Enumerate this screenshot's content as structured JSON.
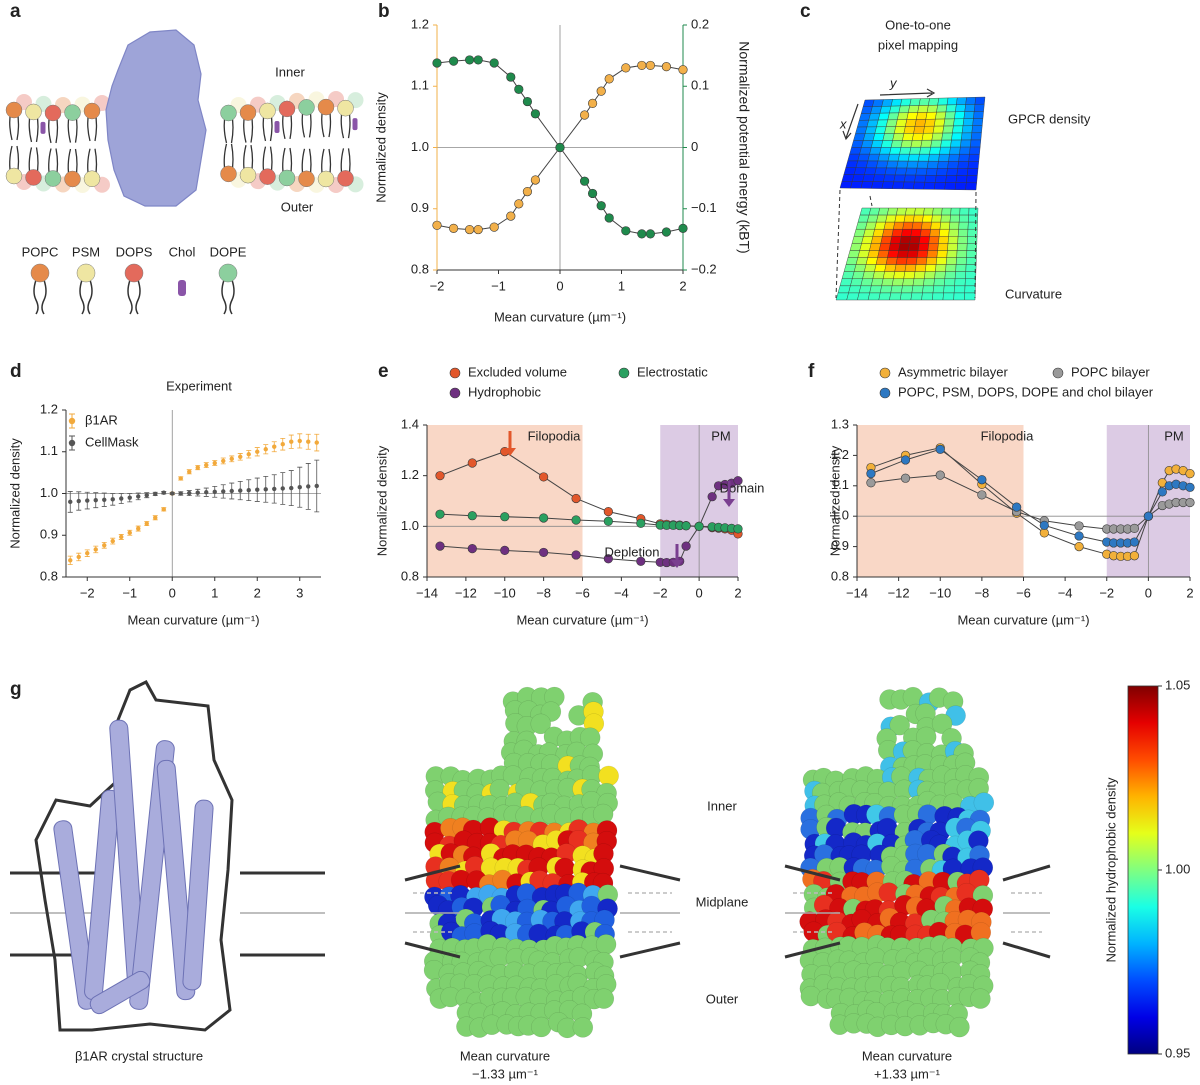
{
  "chart_data": [
    {
      "type": "line",
      "xlabel": "Mean curvature (µm⁻¹)",
      "ylabel": "Normalized density",
      "y2label": "Normalized potential energy (kBT)",
      "x": [
        -2,
        -1.73,
        -1.47,
        -1.33,
        -1.07,
        -0.8,
        -0.67,
        -0.53,
        -0.4,
        0,
        0.4,
        0.53,
        0.67,
        0.8,
        1.07,
        1.33,
        1.47,
        1.73,
        2
      ],
      "series": [
        {
          "color": "#f2b04a",
          "values": [
            0.873,
            0.868,
            0.866,
            0.866,
            0.87,
            0.888,
            0.908,
            0.928,
            0.947,
            1.0,
            1.053,
            1.072,
            1.092,
            1.112,
            1.13,
            1.134,
            1.134,
            1.132,
            1.127
          ]
        },
        {
          "color": "#1f8a4c",
          "axis": "y2",
          "values": [
            0.138,
            0.141,
            0.143,
            0.143,
            0.138,
            0.115,
            0.095,
            0.075,
            0.055,
            0,
            -0.055,
            -0.075,
            -0.095,
            -0.115,
            -0.136,
            -0.141,
            -0.141,
            -0.138,
            -0.132
          ]
        }
      ],
      "xlim": [
        -2,
        2
      ],
      "xticks": [
        {
          "value": -2,
          "label": "−2"
        },
        {
          "value": -1,
          "label": "−1"
        },
        0,
        1,
        2
      ],
      "ylim": [
        0.8,
        1.2
      ],
      "yticks": [
        0.8,
        0.9,
        {
          "value": 1,
          "label": "1.0"
        },
        1.1,
        1.2
      ],
      "y2lim": [
        -0.2,
        0.2
      ],
      "y2ticks": [
        {
          "value": -0.2,
          "label": "−0.2"
        },
        {
          "value": -0.1,
          "label": "−0.1"
        },
        0,
        0.1,
        0.2
      ],
      "hlines": [
        1
      ],
      "vlines": [
        0
      ]
    },
    {
      "type": "errorbar",
      "title": "Experiment",
      "xlabel": "Mean curvature (µm⁻¹)",
      "ylabel": "Normalized density",
      "x": [
        -2.4,
        -2.2,
        -2.0,
        -1.8,
        -1.6,
        -1.4,
        -1.2,
        -1.0,
        -0.8,
        -0.6,
        -0.4,
        -0.2,
        0,
        0.2,
        0.4,
        0.6,
        0.8,
        1.0,
        1.2,
        1.4,
        1.6,
        1.8,
        2.0,
        2.2,
        2.4,
        2.6,
        2.8,
        3.0,
        3.2,
        3.4
      ],
      "series": [
        {
          "name": "β1AR",
          "color": "#f2a93b",
          "values": [
            0.84,
            0.848,
            0.857,
            0.866,
            0.876,
            0.886,
            0.896,
            0.906,
            0.916,
            0.928,
            0.942,
            0.962,
            1.0,
            1.036,
            1.052,
            1.062,
            1.068,
            1.073,
            1.078,
            1.083,
            1.088,
            1.094,
            1.1,
            1.106,
            1.112,
            1.118,
            1.124,
            1.126,
            1.124,
            1.122
          ],
          "errors": [
            0.01,
            0.009,
            0.008,
            0.008,
            0.007,
            0.007,
            0.006,
            0.006,
            0.006,
            0.005,
            0.005,
            0.004,
            0.003,
            0.004,
            0.005,
            0.005,
            0.006,
            0.006,
            0.007,
            0.007,
            0.008,
            0.009,
            0.01,
            0.011,
            0.012,
            0.014,
            0.016,
            0.017,
            0.018,
            0.02
          ]
        },
        {
          "name": "CellMask",
          "color": "#555555",
          "values": [
            0.98,
            0.982,
            0.983,
            0.984,
            0.985,
            0.986,
            0.988,
            0.99,
            0.993,
            0.996,
            0.999,
            1.002,
            1.0,
            1.0,
            1.001,
            1.002,
            1.003,
            1.004,
            1.005,
            1.006,
            1.007,
            1.008,
            1.009,
            1.01,
            1.011,
            1.012,
            1.013,
            1.015,
            1.017,
            1.018
          ],
          "errors": [
            0.025,
            0.022,
            0.02,
            0.018,
            0.016,
            0.014,
            0.012,
            0.01,
            0.008,
            0.006,
            0.004,
            0.003,
            0.002,
            0.004,
            0.006,
            0.008,
            0.01,
            0.013,
            0.016,
            0.019,
            0.022,
            0.025,
            0.028,
            0.031,
            0.034,
            0.038,
            0.042,
            0.048,
            0.055,
            0.062
          ]
        }
      ],
      "xlim": [
        -2.5,
        3.5
      ],
      "xticks": [
        {
          "value": -2,
          "label": "−2"
        },
        {
          "value": -1,
          "label": "−1"
        },
        0,
        1,
        2,
        3
      ],
      "ylim": [
        0.8,
        1.2
      ],
      "yticks": [
        0.8,
        0.9,
        {
          "value": 1,
          "label": "1.0"
        },
        1.1,
        1.2
      ],
      "hlines": [
        1
      ],
      "vlines": [
        0
      ]
    },
    {
      "type": "line",
      "xlabel": "Mean curvature (µm⁻¹)",
      "ylabel": "Normalized density",
      "x": [
        -13.33,
        -11.67,
        -10,
        -8,
        -6.33,
        -4.67,
        -3,
        -2,
        -1.67,
        -1.33,
        -1,
        -0.67,
        0,
        0.67,
        1,
        1.33,
        1.67,
        2
      ],
      "series": [
        {
          "name": "Excluded volume",
          "color": "#e2572b",
          "values": [
            1.2,
            1.25,
            1.295,
            1.195,
            1.11,
            1.058,
            1.03,
            1.01,
            1.008,
            1.006,
            1.005,
            1.003,
            1.0,
            0.995,
            0.993,
            0.99,
            0.985,
            0.97
          ]
        },
        {
          "name": "Hydrophobic",
          "color": "#6e3080",
          "values": [
            0.922,
            0.912,
            0.905,
            0.897,
            0.887,
            0.872,
            0.862,
            0.858,
            0.857,
            0.858,
            0.862,
            0.922,
            1.0,
            1.117,
            1.16,
            1.165,
            1.17,
            1.18
          ]
        },
        {
          "name": "Electrostatic",
          "color": "#2aa060",
          "values": [
            1.048,
            1.042,
            1.038,
            1.033,
            1.025,
            1.02,
            1.012,
            1.005,
            1.004,
            1.004,
            1.003,
            1.002,
            1.0,
            0.998,
            0.996,
            0.994,
            0.992,
            0.99
          ]
        }
      ],
      "xlim": [
        -14,
        2
      ],
      "xticks": [
        {
          "value": -14,
          "label": "−14"
        },
        {
          "value": -12,
          "label": "−12"
        },
        {
          "value": -10,
          "label": "−10"
        },
        {
          "value": -8,
          "label": "−8"
        },
        {
          "value": -6,
          "label": "−6"
        },
        {
          "value": -4,
          "label": "−4"
        },
        {
          "value": -2,
          "label": "−2"
        },
        0,
        2
      ],
      "ylim": [
        0.8,
        1.4
      ],
      "yticks": [
        0.8,
        {
          "value": 1,
          "label": "1.0"
        },
        1.2,
        1.4
      ],
      "hlines": [
        1
      ],
      "vlines": [
        0
      ],
      "regions": [
        {
          "label": "Filopodia",
          "range": [
            -14,
            -6
          ],
          "color": "#f9d7c6",
          "text_color": "#e8603a"
        },
        {
          "label": "PM",
          "range": [
            -2,
            2
          ],
          "color": "#dccbe4",
          "text_color": "#7a3f90"
        }
      ],
      "annotations": [
        {
          "text": "Depletion",
          "color": "#7a3f90"
        },
        {
          "text": "Domain",
          "color": "#7a3f90"
        }
      ]
    },
    {
      "type": "line",
      "xlabel": "Mean curvature (µm⁻¹)",
      "ylabel": "Normalized density",
      "x": [
        -13.33,
        -11.67,
        -10,
        -8,
        -6.33,
        -5,
        -3.33,
        -2,
        -1.67,
        -1.33,
        -1,
        -0.67,
        0,
        0.67,
        1,
        1.33,
        1.67,
        2
      ],
      "series": [
        {
          "name": "Asymmetric bilayer",
          "color": "#f2b03a",
          "values": [
            1.16,
            1.2,
            1.225,
            1.105,
            1.01,
            0.945,
            0.9,
            0.875,
            0.87,
            0.868,
            0.868,
            0.87,
            1.0,
            1.11,
            1.15,
            1.155,
            1.15,
            1.14
          ]
        },
        {
          "name": "POPC bilayer",
          "color": "#9a9a9a",
          "values": [
            1.11,
            1.125,
            1.135,
            1.07,
            1.015,
            0.985,
            0.968,
            0.958,
            0.958,
            0.958,
            0.958,
            0.96,
            1.0,
            1.035,
            1.04,
            1.045,
            1.045,
            1.045
          ]
        },
        {
          "name": "POPC, PSM, DOPS, DOPE and chol bilayer",
          "color": "#2d78c2",
          "values": [
            1.14,
            1.185,
            1.22,
            1.12,
            1.03,
            0.97,
            0.935,
            0.915,
            0.912,
            0.912,
            0.912,
            0.915,
            1.0,
            1.08,
            1.1,
            1.105,
            1.1,
            1.095
          ]
        }
      ],
      "xlim": [
        -14,
        2
      ],
      "xticks": [
        {
          "value": -14,
          "label": "−14"
        },
        {
          "value": -12,
          "label": "−12"
        },
        {
          "value": -10,
          "label": "−10"
        },
        {
          "value": -8,
          "label": "−8"
        },
        {
          "value": -6,
          "label": "−6"
        },
        {
          "value": -4,
          "label": "−4"
        },
        {
          "value": -2,
          "label": "−2"
        },
        0,
        2
      ],
      "ylim": [
        0.8,
        1.3
      ],
      "yticks": [
        0.8,
        0.9,
        {
          "value": 1,
          "label": "1.0"
        },
        1.1,
        1.2,
        1.3
      ],
      "hlines": [
        1
      ],
      "vlines": [
        0
      ],
      "regions": [
        {
          "label": "Filopodia",
          "range": [
            -14,
            -6
          ],
          "color": "#f9d7c6",
          "text_color": "#e8603a"
        },
        {
          "label": "PM",
          "range": [
            -2,
            2
          ],
          "color": "#dccbe4",
          "text_color": "#7a3f90"
        }
      ]
    }
  ],
  "panel_letters": [
    "a",
    "b",
    "c",
    "d",
    "e",
    "f",
    "g"
  ],
  "panel_a": {
    "inner": "Inner",
    "outer": "Outer",
    "lipids": [
      "POPC",
      "PSM",
      "DOPS",
      "Chol",
      "DOPE"
    ]
  },
  "panel_c": {
    "title": [
      "One-to-one",
      "pixel mapping"
    ],
    "x_axis": "x",
    "y_axis": "y",
    "top_label": "GPCR density",
    "bottom_label": "Curvature"
  },
  "panel_g": {
    "captions": [
      [
        "β1AR crystal structure"
      ],
      [
        "Mean curvature",
        "−1.33 µm⁻¹"
      ],
      [
        "Mean curvature",
        "+1.33 µm⁻¹"
      ]
    ],
    "layers": [
      "Inner",
      "Midplane",
      "Outer"
    ],
    "colorbar": {
      "label": "Normalized hydrophobic density",
      "lim": [
        0.95,
        1.05
      ],
      "ticks": [
        0.95,
        {
          "value": 1,
          "label": "1.00"
        },
        1.05
      ]
    }
  }
}
